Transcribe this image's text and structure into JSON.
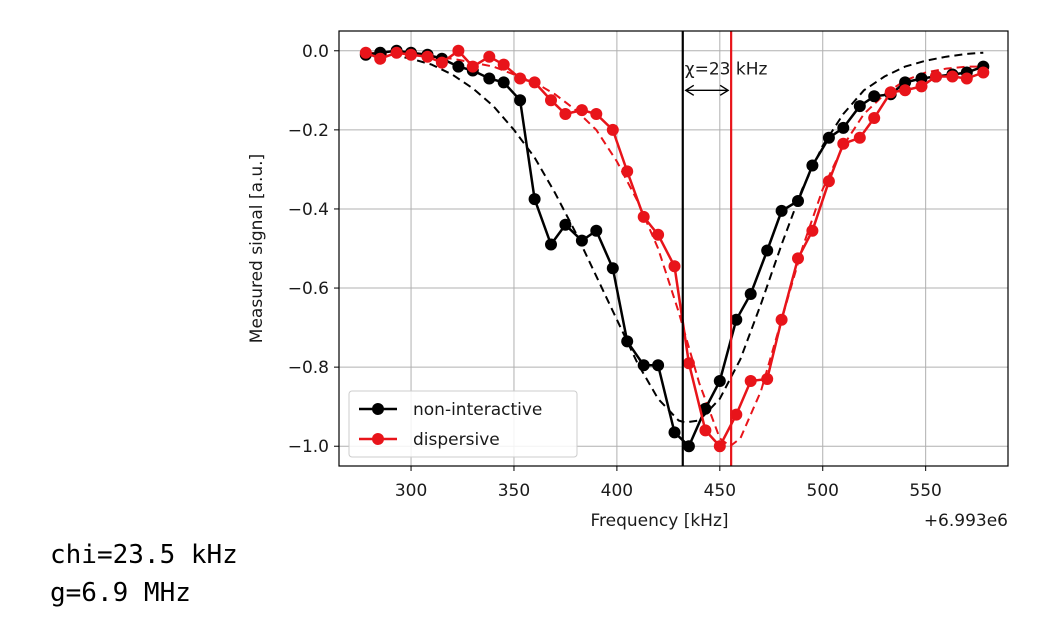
{
  "chart_data": {
    "type": "line",
    "xlabel": "Frequency [kHz]",
    "ylabel": "Measured signal [a.u.]",
    "x_offset_label": "+6.993e6",
    "xlim": [
      265,
      590
    ],
    "ylim": [
      -1.05,
      0.05
    ],
    "xticks": [
      300,
      350,
      400,
      450,
      500,
      550
    ],
    "yticks": [
      0.0,
      -0.2,
      -0.4,
      -0.6,
      -0.8,
      -1.0
    ],
    "ytick_labels": [
      "0.0",
      "−0.2",
      "−0.4",
      "−0.6",
      "−0.8",
      "−1.0"
    ],
    "grid": true,
    "legend_placement": "lower-left",
    "series": [
      {
        "name": "non-interactive",
        "color": "#000000",
        "x": [
          278,
          285,
          293,
          300,
          308,
          315,
          323,
          330,
          338,
          345,
          353,
          360,
          368,
          375,
          383,
          390,
          398,
          405,
          413,
          420,
          428,
          435,
          443,
          450,
          458,
          465,
          473,
          480,
          488,
          495,
          503,
          510,
          518,
          525,
          533,
          540,
          548,
          555,
          563,
          570,
          578
        ],
        "values": [
          -0.01,
          -0.005,
          0.0,
          -0.005,
          -0.01,
          -0.02,
          -0.04,
          -0.05,
          -0.07,
          -0.08,
          -0.125,
          -0.375,
          -0.49,
          -0.44,
          -0.48,
          -0.455,
          -0.55,
          -0.735,
          -0.795,
          -0.795,
          -0.965,
          -1.0,
          -0.905,
          -0.835,
          -0.68,
          -0.615,
          -0.505,
          -0.405,
          -0.38,
          -0.29,
          -0.22,
          -0.195,
          -0.14,
          -0.115,
          -0.11,
          -0.08,
          -0.07,
          -0.065,
          -0.06,
          -0.055,
          -0.04
        ]
      },
      {
        "name": "dispersive",
        "color": "#e8141a",
        "x": [
          278,
          285,
          293,
          300,
          308,
          315,
          323,
          330,
          338,
          345,
          353,
          360,
          368,
          375,
          383,
          390,
          398,
          405,
          413,
          420,
          428,
          435,
          443,
          450,
          458,
          465,
          473,
          480,
          488,
          495,
          503,
          510,
          518,
          525,
          533,
          540,
          548,
          555,
          563,
          570,
          578
        ],
        "values": [
          -0.005,
          -0.02,
          -0.005,
          -0.01,
          -0.015,
          -0.03,
          0.0,
          -0.04,
          -0.015,
          -0.035,
          -0.07,
          -0.08,
          -0.125,
          -0.16,
          -0.15,
          -0.16,
          -0.2,
          -0.305,
          -0.42,
          -0.465,
          -0.545,
          -0.79,
          -0.96,
          -1.0,
          -0.92,
          -0.835,
          -0.83,
          -0.68,
          -0.525,
          -0.455,
          -0.33,
          -0.235,
          -0.22,
          -0.17,
          -0.105,
          -0.1,
          -0.09,
          -0.065,
          -0.065,
          -0.07,
          -0.055
        ]
      }
    ],
    "fits": [
      {
        "color": "#000000",
        "style": "dashed",
        "x": [
          278,
          290,
          300,
          310,
          320,
          330,
          340,
          350,
          360,
          370,
          380,
          390,
          400,
          410,
          420,
          430,
          433,
          440,
          450,
          460,
          470,
          480,
          490,
          500,
          510,
          520,
          530,
          540,
          550,
          560,
          570,
          578
        ],
        "values": [
          -0.005,
          -0.01,
          -0.02,
          -0.035,
          -0.06,
          -0.095,
          -0.14,
          -0.2,
          -0.27,
          -0.36,
          -0.46,
          -0.57,
          -0.68,
          -0.79,
          -0.88,
          -0.935,
          -0.94,
          -0.935,
          -0.88,
          -0.78,
          -0.64,
          -0.49,
          -0.35,
          -0.24,
          -0.16,
          -0.1,
          -0.065,
          -0.04,
          -0.025,
          -0.015,
          -0.008,
          -0.005
        ]
      },
      {
        "color": "#e8141a",
        "style": "dashed",
        "x": [
          278,
          300,
          320,
          340,
          360,
          370,
          380,
          390,
          400,
          410,
          420,
          430,
          440,
          450,
          455,
          460,
          470,
          480,
          490,
          500,
          510,
          520,
          530,
          540,
          550,
          560,
          570,
          578
        ],
        "values": [
          -0.005,
          -0.01,
          -0.02,
          -0.04,
          -0.08,
          -0.11,
          -0.15,
          -0.2,
          -0.28,
          -0.38,
          -0.5,
          -0.66,
          -0.84,
          -0.98,
          -1.0,
          -0.98,
          -0.86,
          -0.68,
          -0.5,
          -0.35,
          -0.24,
          -0.16,
          -0.11,
          -0.075,
          -0.055,
          -0.045,
          -0.04,
          -0.04
        ]
      }
    ],
    "vlines": [
      {
        "x": 432,
        "color": "#000000"
      },
      {
        "x": 455.5,
        "color": "#e8141a"
      }
    ],
    "annotation": {
      "text": "χ=23 kHz",
      "x_from": 432,
      "x_to": 455.5,
      "y": -0.1,
      "text_y": -0.045
    }
  },
  "output_lines": [
    "chi=23.5 kHz",
    "g=6.9 MHz"
  ]
}
